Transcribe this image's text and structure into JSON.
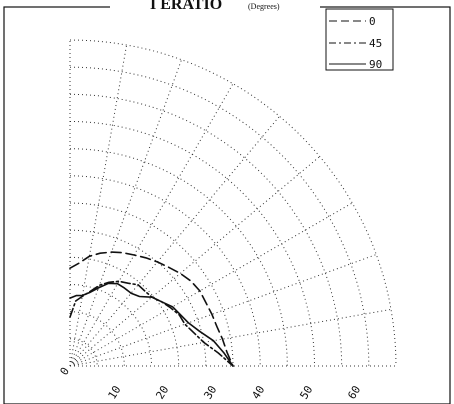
{
  "chart_data": {
    "type": "polar-line",
    "title": "I   ERATIO",
    "title_sub": "(Degrees)",
    "radial_ticks": [
      "0",
      "10",
      "20",
      "30",
      "40",
      "50",
      "60"
    ],
    "angle_range_deg": [
      0,
      90
    ],
    "grid": true,
    "legend_position": "top-right",
    "series": [
      {
        "name": "0",
        "style": "dashed",
        "points": [
          [
            0,
            18
          ],
          [
            5,
            19
          ],
          [
            10,
            20.5
          ],
          [
            15,
            21.5
          ],
          [
            20,
            22.3
          ],
          [
            25,
            23
          ],
          [
            30,
            23.6
          ],
          [
            35,
            24.3
          ],
          [
            40,
            25
          ],
          [
            45,
            25.7
          ],
          [
            50,
            26.5
          ],
          [
            55,
            27.2
          ],
          [
            60,
            27.6
          ],
          [
            65,
            27.6
          ],
          [
            70,
            27.8
          ],
          [
            75,
            28
          ],
          [
            80,
            28.5
          ],
          [
            85,
            29
          ],
          [
            90,
            30
          ]
        ]
      },
      {
        "name": "45",
        "style": "dash-dot",
        "points": [
          [
            0,
            9
          ],
          [
            5,
            12
          ],
          [
            10,
            13
          ],
          [
            15,
            14.2
          ],
          [
            20,
            15.8
          ],
          [
            25,
            17
          ],
          [
            30,
            18
          ],
          [
            35,
            18.6
          ],
          [
            40,
            19.5
          ],
          [
            45,
            19.5
          ],
          [
            50,
            19.7
          ],
          [
            55,
            20.6
          ],
          [
            60,
            21.4
          ],
          [
            65,
            22.2
          ],
          [
            70,
            22.5
          ],
          [
            75,
            23.6
          ],
          [
            80,
            25
          ],
          [
            85,
            27.4
          ],
          [
            90,
            30
          ]
        ]
      },
      {
        "name": "90",
        "style": "solid",
        "points": [
          [
            0,
            12.5
          ],
          [
            5,
            13
          ],
          [
            10,
            13.2
          ],
          [
            15,
            14
          ],
          [
            20,
            15.3
          ],
          [
            25,
            16.8
          ],
          [
            30,
            17.5
          ],
          [
            35,
            17.5
          ],
          [
            40,
            17.5
          ],
          [
            45,
            18.1
          ],
          [
            50,
            19.7
          ],
          [
            55,
            20.6
          ],
          [
            60,
            21.8
          ],
          [
            65,
            22.4
          ],
          [
            70,
            23.2
          ],
          [
            75,
            24.7
          ],
          [
            80,
            26.8
          ],
          [
            85,
            28.4
          ],
          [
            90,
            30
          ]
        ]
      }
    ]
  }
}
